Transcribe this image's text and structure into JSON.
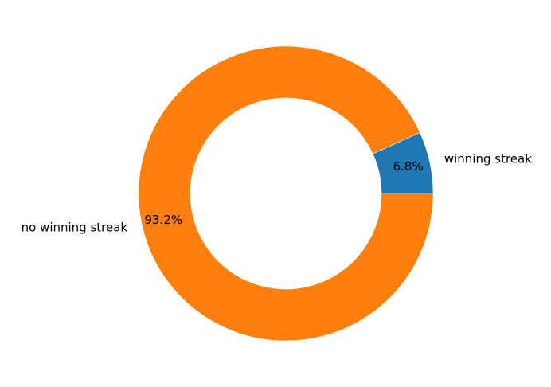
{
  "chart_data": {
    "type": "pie",
    "donut": true,
    "title": "",
    "slices": [
      {
        "label": "winning streak",
        "value": 6.8,
        "percent_label": "6.8%",
        "color": "#1f77b4"
      },
      {
        "label": "no winning streak",
        "value": 93.2,
        "percent_label": "93.2%",
        "color": "#ff7f0e"
      }
    ],
    "start_angle": 0,
    "direction": "counterclockwise",
    "legend": "none"
  }
}
